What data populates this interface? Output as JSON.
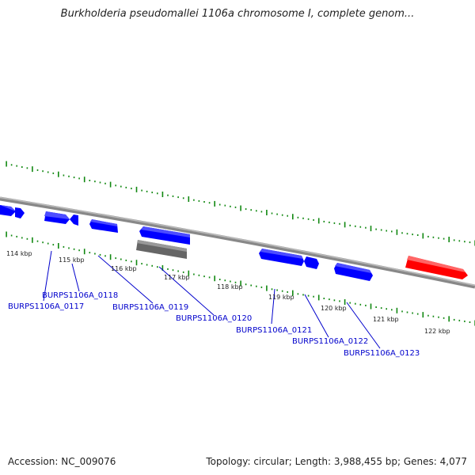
{
  "title": "Burkholderia pseudomallei 1106a chromosome I, complete genom...",
  "accession_line": "Accession: NC_009076",
  "stats_line": "Topology: circular; Length: 3,988,455 bp; Genes: 4,077",
  "scale_labels": [
    "114 kbp",
    "115 kbp",
    "116 kbp",
    "117 kbp",
    "118 kbp",
    "119 kbp",
    "120 kbp",
    "121 kbp",
    "122 kbp"
  ],
  "gene_labels": [
    "BURPS1106A_0117",
    "BURPS1106A_0118",
    "BURPS1106A_0119",
    "BURPS1106A_0120",
    "BURPS1106A_0121",
    "BURPS1106A_0122",
    "BURPS1106A_0123"
  ],
  "colors": {
    "forward_gene": "#0000ff",
    "pseudo_gene": "#666666",
    "highlight_gene": "#ff0000",
    "backbone": "#888888",
    "ticks": "#118811",
    "label": "#0000cc"
  }
}
